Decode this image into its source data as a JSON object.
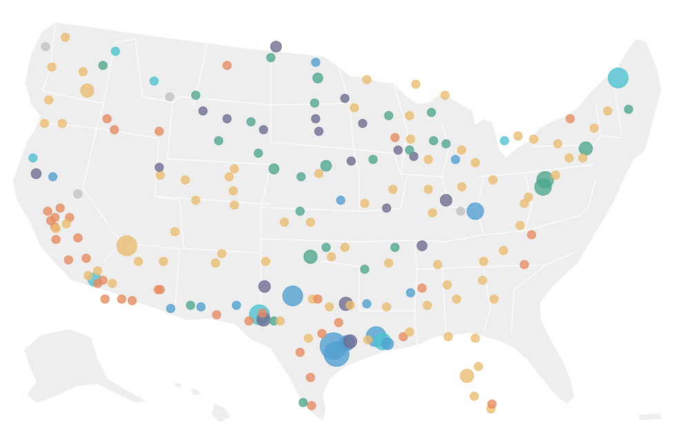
{
  "palette": {
    "orange": "#e88a5f",
    "gold": "#ebbd6f",
    "teal": "#4da68e",
    "blue": "#4f9fd1",
    "cyan": "#4cc3cf",
    "purple": "#6d6b8f",
    "gray": "#c2c2c2"
  },
  "markers": [
    {
      "lon": -122.3,
      "lat": 47.6,
      "cat": "gold",
      "size": 1.0
    },
    {
      "lon": -122.6,
      "lat": 45.5,
      "cat": "gold",
      "size": 1.0
    },
    {
      "lon": -117.4,
      "lat": 47.7,
      "cat": "teal",
      "size": 1.0
    },
    {
      "lon": -116.2,
      "lat": 48.6,
      "cat": "cyan",
      "size": 1.0
    },
    {
      "lon": -122.9,
      "lat": 48.9,
      "cat": "gray",
      "size": 1.0
    },
    {
      "lon": -121.0,
      "lat": 49.5,
      "cat": "gold",
      "size": 1.0
    },
    {
      "lon": -123.0,
      "lat": 44.0,
      "cat": "gold",
      "size": 1.0
    },
    {
      "lon": -121.3,
      "lat": 44.0,
      "cat": "gold",
      "size": 1.0
    },
    {
      "lon": -118.9,
      "lat": 46.1,
      "cat": "gold",
      "size": 1.6
    },
    {
      "lon": -119.3,
      "lat": 47.3,
      "cat": "gold",
      "size": 1.0
    },
    {
      "lon": -117.0,
      "lat": 44.3,
      "cat": "orange",
      "size": 1.0
    },
    {
      "lon": -116.3,
      "lat": 43.6,
      "cat": "orange",
      "size": 1.0
    },
    {
      "lon": -112.0,
      "lat": 43.5,
      "cat": "orange",
      "size": 1.0
    },
    {
      "lon": -111.0,
      "lat": 45.7,
      "cat": "gray",
      "size": 1.0
    },
    {
      "lon": -112.5,
      "lat": 46.7,
      "cat": "cyan",
      "size": 1.0
    },
    {
      "lon": -108.5,
      "lat": 45.8,
      "cat": "teal",
      "size": 1.0
    },
    {
      "lon": -105.5,
      "lat": 47.7,
      "cat": "orange",
      "size": 1.0
    },
    {
      "lon": -101.3,
      "lat": 48.2,
      "cat": "teal",
      "size": 1.0
    },
    {
      "lon": -97.0,
      "lat": 47.9,
      "cat": "blue",
      "size": 1.0
    },
    {
      "lon": -96.8,
      "lat": 46.9,
      "cat": "teal",
      "size": 1.2
    },
    {
      "lon": -100.8,
      "lat": 48.9,
      "cat": "purple",
      "size": 1.3
    },
    {
      "lon": -122.4,
      "lat": 37.8,
      "cat": "orange",
      "size": 1.0
    },
    {
      "lon": -122.0,
      "lat": 37.4,
      "cat": "orange",
      "size": 1.0
    },
    {
      "lon": -121.5,
      "lat": 38.6,
      "cat": "orange",
      "size": 1.0
    },
    {
      "lon": -121.9,
      "lat": 36.6,
      "cat": "orange",
      "size": 1.0
    },
    {
      "lon": -120.7,
      "lat": 35.3,
      "cat": "orange",
      "size": 1.0
    },
    {
      "lon": -119.8,
      "lat": 36.7,
      "cat": "orange",
      "size": 1.0
    },
    {
      "lon": -119.0,
      "lat": 35.4,
      "cat": "orange",
      "size": 1.0
    },
    {
      "lon": -118.2,
      "lat": 34.05,
      "cat": "cyan",
      "size": 1.6
    },
    {
      "lon": -117.9,
      "lat": 33.8,
      "cat": "orange",
      "size": 1.0
    },
    {
      "lon": -117.2,
      "lat": 32.8,
      "cat": "orange",
      "size": 1.0
    },
    {
      "lon": -117.4,
      "lat": 34.0,
      "cat": "orange",
      "size": 1.0
    },
    {
      "lon": -116.5,
      "lat": 33.8,
      "cat": "gold",
      "size": 1.0
    },
    {
      "lon": -118.8,
      "lat": 34.3,
      "cat": "gold",
      "size": 1.0
    },
    {
      "lon": -122.7,
      "lat": 38.4,
      "cat": "orange",
      "size": 1.0
    },
    {
      "lon": -123.8,
      "lat": 40.8,
      "cat": "purple",
      "size": 1.2
    },
    {
      "lon": -122.2,
      "lat": 40.6,
      "cat": "blue",
      "size": 1.0
    },
    {
      "lon": -124.1,
      "lat": 41.8,
      "cat": "cyan",
      "size": 1.0
    },
    {
      "lon": -119.8,
      "lat": 39.5,
      "cat": "gray",
      "size": 1.0
    },
    {
      "lon": -120.6,
      "lat": 38.0,
      "cat": "orange",
      "size": 1.0
    },
    {
      "lon": -117.9,
      "lat": 34.6,
      "cat": "gold",
      "size": 1.0
    },
    {
      "lon": -115.6,
      "lat": 32.8,
      "cat": "orange",
      "size": 1.0
    },
    {
      "lon": -114.6,
      "lat": 32.7,
      "cat": "orange",
      "size": 1.0
    },
    {
      "lon": -115.1,
      "lat": 36.2,
      "cat": "gold",
      "size": 2.4
    },
    {
      "lon": -114.0,
      "lat": 35.2,
      "cat": "gold",
      "size": 1.0
    },
    {
      "lon": -112.1,
      "lat": 33.4,
      "cat": "orange",
      "size": 1.0
    },
    {
      "lon": -111.9,
      "lat": 33.4,
      "cat": "orange",
      "size": 1.0
    },
    {
      "lon": -110.9,
      "lat": 32.2,
      "cat": "blue",
      "size": 1.0
    },
    {
      "lon": -111.6,
      "lat": 35.2,
      "cat": "gold",
      "size": 1.0
    },
    {
      "lon": -109.0,
      "lat": 32.4,
      "cat": "teal",
      "size": 1.0
    },
    {
      "lon": -108.0,
      "lat": 32.3,
      "cat": "blue",
      "size": 1.0
    },
    {
      "lon": -111.9,
      "lat": 40.7,
      "cat": "gold",
      "size": 1.0
    },
    {
      "lon": -112.0,
      "lat": 41.2,
      "cat": "purple",
      "size": 1.0
    },
    {
      "lon": -110.5,
      "lat": 37.1,
      "cat": "gold",
      "size": 1.0
    },
    {
      "lon": -109.5,
      "lat": 40.4,
      "cat": "gold",
      "size": 1.0
    },
    {
      "lon": -108.5,
      "lat": 39.1,
      "cat": "gold",
      "size": 1.0
    },
    {
      "lon": -106.6,
      "lat": 35.1,
      "cat": "gold",
      "size": 1.0
    },
    {
      "lon": -106.0,
      "lat": 35.7,
      "cat": "gold",
      "size": 1.0
    },
    {
      "lon": -104.9,
      "lat": 39.7,
      "cat": "gold",
      "size": 1.0
    },
    {
      "lon": -104.8,
      "lat": 38.8,
      "cat": "gold",
      "size": 1.0
    },
    {
      "lon": -105.3,
      "lat": 40.6,
      "cat": "gold",
      "size": 1.0
    },
    {
      "lon": -104.6,
      "lat": 32.4,
      "cat": "blue",
      "size": 1.0
    },
    {
      "lon": -106.5,
      "lat": 31.8,
      "cat": "orange",
      "size": 1.0
    },
    {
      "lon": -107.8,
      "lat": 44.8,
      "cat": "purple",
      "size": 1.0
    },
    {
      "lon": -106.3,
      "lat": 42.9,
      "cat": "teal",
      "size": 1.0
    },
    {
      "lon": -105.5,
      "lat": 44.3,
      "cat": "purple",
      "size": 1.0
    },
    {
      "lon": -104.8,
      "lat": 41.1,
      "cat": "gold",
      "size": 1.0
    },
    {
      "lon": -103.2,
      "lat": 44.1,
      "cat": "teal",
      "size": 1.0
    },
    {
      "lon": -102.0,
      "lat": 43.6,
      "cat": "purple",
      "size": 1.0
    },
    {
      "lon": -102.5,
      "lat": 42.1,
      "cat": "teal",
      "size": 1.0
    },
    {
      "lon": -101.0,
      "lat": 41.1,
      "cat": "teal",
      "size": 1.2
    },
    {
      "lon": -98.4,
      "lat": 40.6,
      "cat": "teal",
      "size": 1.0
    },
    {
      "lon": -96.7,
      "lat": 40.8,
      "cat": "gold",
      "size": 1.0
    },
    {
      "lon": -96.0,
      "lat": 41.3,
      "cat": "teal",
      "size": 1.3
    },
    {
      "lon": -97.5,
      "lat": 37.7,
      "cat": "gold",
      "size": 1.0
    },
    {
      "lon": -98.5,
      "lat": 38.4,
      "cat": "teal",
      "size": 1.0
    },
    {
      "lon": -100.0,
      "lat": 37.7,
      "cat": "gold",
      "size": 1.0
    },
    {
      "lon": -97.5,
      "lat": 35.5,
      "cat": "teal",
      "size": 1.6
    },
    {
      "lon": -96.0,
      "lat": 36.1,
      "cat": "teal",
      "size": 1.0
    },
    {
      "lon": -95.5,
      "lat": 35.5,
      "cat": "gold",
      "size": 1.0
    },
    {
      "lon": -101.8,
      "lat": 35.2,
      "cat": "gold",
      "size": 1.0
    },
    {
      "lon": -101.9,
      "lat": 33.6,
      "cat": "purple",
      "size": 1.4
    },
    {
      "lon": -99.2,
      "lat": 33.0,
      "cat": "blue",
      "size": 2.4
    },
    {
      "lon": -97.3,
      "lat": 32.8,
      "cat": "gold",
      "size": 1.0
    },
    {
      "lon": -96.8,
      "lat": 32.8,
      "cat": "orange",
      "size": 1.0
    },
    {
      "lon": -97.7,
      "lat": 30.3,
      "cat": "gold",
      "size": 1.0
    },
    {
      "lon": -98.5,
      "lat": 29.4,
      "cat": "orange",
      "size": 1.0
    },
    {
      "lon": -102.1,
      "lat": 31.9,
      "cat": "orange",
      "size": 1.0
    },
    {
      "lon": -102.4,
      "lat": 31.8,
      "cat": "cyan",
      "size": 2.4
    },
    {
      "lon": -102.0,
      "lat": 31.5,
      "cat": "purple",
      "size": 1.6
    },
    {
      "lon": -101.0,
      "lat": 31.4,
      "cat": "teal",
      "size": 1.0
    },
    {
      "lon": -100.4,
      "lat": 31.4,
      "cat": "gold",
      "size": 1.0
    },
    {
      "lon": -103.4,
      "lat": 31.4,
      "cat": "orange",
      "size": 1.0
    },
    {
      "lon": -97.5,
      "lat": 27.8,
      "cat": "orange",
      "size": 1.0
    },
    {
      "lon": -97.4,
      "lat": 26.0,
      "cat": "orange",
      "size": 1.0
    },
    {
      "lon": -98.2,
      "lat": 26.2,
      "cat": "teal",
      "size": 1.0
    },
    {
      "lon": -95.3,
      "lat": 29.8,
      "cat": "blue",
      "size": 3.2
    },
    {
      "lon": -95.0,
      "lat": 29.3,
      "cat": "blue",
      "size": 3.0
    },
    {
      "lon": -94.0,
      "lat": 30.0,
      "cat": "blue",
      "size": 1.8
    },
    {
      "lon": -93.7,
      "lat": 30.1,
      "cat": "purple",
      "size": 1.6
    },
    {
      "lon": -94.1,
      "lat": 32.5,
      "cat": "purple",
      "size": 1.6
    },
    {
      "lon": -95.7,
      "lat": 32.3,
      "cat": "gold",
      "size": 1.0
    },
    {
      "lon": -94.8,
      "lat": 31.3,
      "cat": "orange",
      "size": 1.0
    },
    {
      "lon": -96.4,
      "lat": 30.6,
      "cat": "orange",
      "size": 1.0
    },
    {
      "lon": -91.2,
      "lat": 30.4,
      "cat": "blue",
      "size": 2.4
    },
    {
      "lon": -90.6,
      "lat": 30.1,
      "cat": "cyan",
      "size": 2.0
    },
    {
      "lon": -90.1,
      "lat": 29.95,
      "cat": "blue",
      "size": 1.4
    },
    {
      "lon": -92.0,
      "lat": 30.2,
      "cat": "gold",
      "size": 1.0
    },
    {
      "lon": -93.7,
      "lat": 32.4,
      "cat": "gold",
      "size": 1.0
    },
    {
      "lon": -92.1,
      "lat": 32.5,
      "cat": "blue",
      "size": 1.0
    },
    {
      "lon": -90.2,
      "lat": 32.3,
      "cat": "gold",
      "size": 1.0
    },
    {
      "lon": -88.6,
      "lat": 30.4,
      "cat": "orange",
      "size": 1.0
    },
    {
      "lon": -88.0,
      "lat": 30.7,
      "cat": "gold",
      "size": 1.0
    },
    {
      "lon": -86.8,
      "lat": 33.5,
      "cat": "orange",
      "size": 1.0
    },
    {
      "lon": -86.3,
      "lat": 32.4,
      "cat": "gold",
      "size": 1.0
    },
    {
      "lon": -92.3,
      "lat": 34.7,
      "cat": "teal",
      "size": 1.0
    },
    {
      "lon": -94.2,
      "lat": 36.1,
      "cat": "gold",
      "size": 1.0
    },
    {
      "lon": -90.0,
      "lat": 35.1,
      "cat": "gold",
      "size": 1.0
    },
    {
      "lon": -86.8,
      "lat": 36.2,
      "cat": "purple",
      "size": 1.2
    },
    {
      "lon": -85.3,
      "lat": 35.0,
      "cat": "gold",
      "size": 1.0
    },
    {
      "lon": -84.4,
      "lat": 33.7,
      "cat": "gold",
      "size": 1.0
    },
    {
      "lon": -83.5,
      "lat": 32.8,
      "cat": "gold",
      "size": 1.0
    },
    {
      "lon": -84.3,
      "lat": 30.4,
      "cat": "gold",
      "size": 1.0
    },
    {
      "lon": -81.7,
      "lat": 30.3,
      "cat": "gold",
      "size": 1.0
    },
    {
      "lon": -81.4,
      "lat": 28.5,
      "cat": "gold",
      "size": 1.0
    },
    {
      "lon": -82.5,
      "lat": 27.9,
      "cat": "gold",
      "size": 1.6
    },
    {
      "lon": -80.2,
      "lat": 25.8,
      "cat": "gold",
      "size": 1.0
    },
    {
      "lon": -80.1,
      "lat": 26.1,
      "cat": "orange",
      "size": 1.0
    },
    {
      "lon": -81.8,
      "lat": 26.6,
      "cat": "gold",
      "size": 1.0
    },
    {
      "lon": -80.9,
      "lat": 35.2,
      "cat": "gold",
      "size": 1.0
    },
    {
      "lon": -79.0,
      "lat": 35.9,
      "cat": "gold",
      "size": 1.0
    },
    {
      "lon": -77.0,
      "lat": 35.0,
      "cat": "orange",
      "size": 1.0
    },
    {
      "lon": -81.0,
      "lat": 34.0,
      "cat": "gold",
      "size": 1.0
    },
    {
      "lon": -79.9,
      "lat": 32.8,
      "cat": "gold",
      "size": 1.0
    },
    {
      "lon": -81.7,
      "lat": 38.4,
      "cat": "blue",
      "size": 2.0
    },
    {
      "lon": -80.0,
      "lat": 40.4,
      "cat": "gold",
      "size": 1.0
    },
    {
      "lon": -77.4,
      "lat": 37.5,
      "cat": "gold",
      "size": 1.0
    },
    {
      "lon": -76.3,
      "lat": 36.9,
      "cat": "orange",
      "size": 1.0
    },
    {
      "lon": -77.0,
      "lat": 38.9,
      "cat": "gold",
      "size": 1.0
    },
    {
      "lon": -76.6,
      "lat": 39.3,
      "cat": "gold",
      "size": 1.0
    },
    {
      "lon": -75.2,
      "lat": 39.95,
      "cat": "teal",
      "size": 2.0
    },
    {
      "lon": -75.0,
      "lat": 40.4,
      "cat": "teal",
      "size": 2.0
    },
    {
      "lon": -74.0,
      "lat": 40.7,
      "cat": "gold",
      "size": 1.0
    },
    {
      "lon": -73.8,
      "lat": 42.7,
      "cat": "gold",
      "size": 1.0
    },
    {
      "lon": -76.1,
      "lat": 43.0,
      "cat": "gold",
      "size": 1.0
    },
    {
      "lon": -77.6,
      "lat": 43.2,
      "cat": "gold",
      "size": 1.0
    },
    {
      "lon": -78.9,
      "lat": 42.9,
      "cat": "cyan",
      "size": 1.0
    },
    {
      "lon": -72.7,
      "lat": 41.8,
      "cat": "gold",
      "size": 1.0
    },
    {
      "lon": -71.4,
      "lat": 41.8,
      "cat": "gold",
      "size": 1.0
    },
    {
      "lon": -71.1,
      "lat": 42.4,
      "cat": "teal",
      "size": 1.6
    },
    {
      "lon": -70.3,
      "lat": 43.7,
      "cat": "gold",
      "size": 1.0
    },
    {
      "lon": -69.0,
      "lat": 44.8,
      "cat": "gold",
      "size": 1.0
    },
    {
      "lon": -68.0,
      "lat": 46.9,
      "cat": "cyan",
      "size": 2.4
    },
    {
      "lon": -67.0,
      "lat": 44.9,
      "cat": "teal",
      "size": 1.0
    },
    {
      "lon": -72.6,
      "lat": 44.3,
      "cat": "orange",
      "size": 1.0
    },
    {
      "lon": -83.0,
      "lat": 42.3,
      "cat": "gold",
      "size": 1.0
    },
    {
      "lon": -83.6,
      "lat": 41.7,
      "cat": "blue",
      "size": 1.0
    },
    {
      "lon": -84.5,
      "lat": 42.7,
      "cat": "teal",
      "size": 1.0
    },
    {
      "lon": -85.7,
      "lat": 42.9,
      "cat": "teal",
      "size": 1.0
    },
    {
      "lon": -86.2,
      "lat": 41.7,
      "cat": "gold",
      "size": 1.0
    },
    {
      "lon": -81.7,
      "lat": 41.5,
      "cat": "gold",
      "size": 1.0
    },
    {
      "lon": -84.5,
      "lat": 39.1,
      "cat": "purple",
      "size": 1.4
    },
    {
      "lon": -82.99,
      "lat": 39.96,
      "cat": "gold",
      "size": 1.0
    },
    {
      "lon": -86.2,
      "lat": 39.8,
      "cat": "gold",
      "size": 1.0
    },
    {
      "lon": -85.8,
      "lat": 38.3,
      "cat": "gold",
      "size": 1.0
    },
    {
      "lon": -83.1,
      "lat": 38.4,
      "cat": "gray",
      "size": 1.0
    },
    {
      "lon": -87.6,
      "lat": 41.9,
      "cat": "purple",
      "size": 1.0
    },
    {
      "lon": -88.0,
      "lat": 42.3,
      "cat": "teal",
      "size": 1.0
    },
    {
      "lon": -87.9,
      "lat": 43.0,
      "cat": "gold",
      "size": 1.0
    },
    {
      "lon": -89.4,
      "lat": 43.1,
      "cat": "orange",
      "size": 1.0
    },
    {
      "lon": -89.6,
      "lat": 39.8,
      "cat": "gold",
      "size": 1.0
    },
    {
      "lon": -90.2,
      "lat": 38.6,
      "cat": "purple",
      "size": 1.0
    },
    {
      "lon": -92.3,
      "lat": 38.9,
      "cat": "gold",
      "size": 1.0
    },
    {
      "lon": -94.6,
      "lat": 39.1,
      "cat": "blue",
      "size": 1.0
    },
    {
      "lon": -93.6,
      "lat": 41.6,
      "cat": "purple",
      "size": 1.0
    },
    {
      "lon": -91.5,
      "lat": 41.7,
      "cat": "teal",
      "size": 1.0
    },
    {
      "lon": -92.5,
      "lat": 44.0,
      "cat": "purple",
      "size": 1.0
    },
    {
      "lon": -93.3,
      "lat": 45.0,
      "cat": "gold",
      "size": 1.0
    },
    {
      "lon": -92.1,
      "lat": 46.8,
      "cat": "gold",
      "size": 1.0
    },
    {
      "lon": -94.2,
      "lat": 45.6,
      "cat": "purple",
      "size": 1.0
    },
    {
      "lon": -96.7,
      "lat": 43.5,
      "cat": "purple",
      "size": 1.0
    },
    {
      "lon": -90.0,
      "lat": 44.5,
      "cat": "teal",
      "size": 1.0
    },
    {
      "lon": -88.0,
      "lat": 44.5,
      "cat": "gold",
      "size": 1.0
    },
    {
      "lon": -84.6,
      "lat": 45.8,
      "cat": "gold",
      "size": 1.0
    },
    {
      "lon": -87.4,
      "lat": 46.5,
      "cat": "gold",
      "size": 1.0
    },
    {
      "lon": -97.1,
      "lat": 45.3,
      "cat": "teal",
      "size": 1.0
    },
    {
      "lon": -89.1,
      "lat": 42.3,
      "cat": "purple",
      "size": 1.0
    },
    {
      "lon": -85.9,
      "lat": 44.7,
      "cat": "teal",
      "size": 1.0
    },
    {
      "lon": -87.9,
      "lat": 33.2,
      "cat": "blue",
      "size": 1.0
    },
    {
      "lon": -89.4,
      "lat": 36.1,
      "cat": "teal",
      "size": 1.0
    },
    {
      "lon": -97.0,
      "lat": 44.3,
      "cat": "purple",
      "size": 1.0
    },
    {
      "lon": -121.9,
      "lat": 37.3,
      "cat": "gold",
      "size": 1.0
    },
    {
      "lon": -122.0,
      "lat": 38.0,
      "cat": "orange",
      "size": 1.0
    },
    {
      "lon": -120.9,
      "lat": 37.6,
      "cat": "gold",
      "size": 1.0
    }
  ]
}
